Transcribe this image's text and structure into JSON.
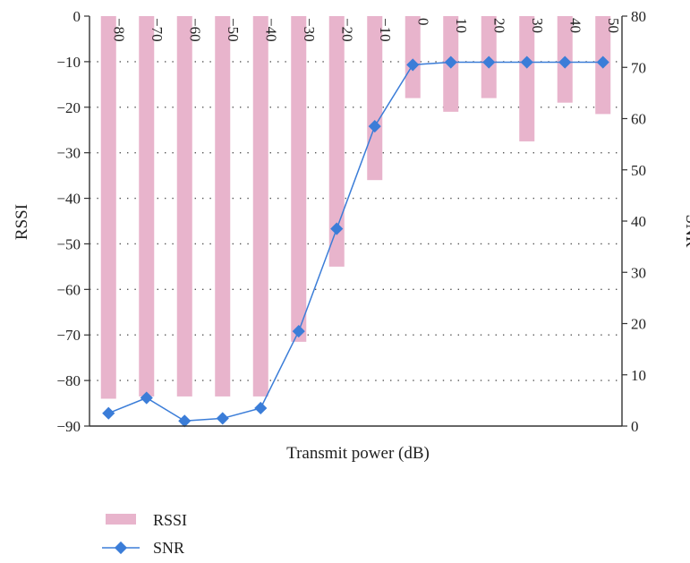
{
  "chart_data": {
    "type": "bar+line",
    "categories": [
      "−80",
      "−70",
      "−60",
      "−50",
      "−40",
      "−30",
      "−20",
      "−10",
      "0",
      "10",
      "20",
      "30",
      "40",
      "50"
    ],
    "series": [
      {
        "name": "RSSI",
        "type": "bar",
        "axis": "left",
        "color": "#e8b4cc",
        "values": [
          -84,
          -83.5,
          -83.5,
          -83.5,
          -83.5,
          -71.5,
          -55,
          -36,
          -18,
          -21,
          -18,
          -27.5,
          -19,
          -21.5
        ]
      },
      {
        "name": "SNR",
        "type": "line",
        "axis": "right",
        "color": "#3b7dd8",
        "marker": "diamond",
        "values": [
          2.5,
          5.5,
          1,
          1.5,
          3.5,
          18.5,
          38.5,
          58.5,
          70.5,
          71,
          71,
          71,
          71,
          71
        ]
      }
    ],
    "xlabel": "Transmit power (dB)",
    "ylabel_left": "RSSI",
    "ylabel_right": "SNR",
    "ylim_left": [
      -90,
      0
    ],
    "ylim_right": [
      0,
      80
    ],
    "yticks_left": [
      "0",
      "−10",
      "−20",
      "−30",
      "−40",
      "−50",
      "−60",
      "−70",
      "−80",
      "−90"
    ],
    "yticks_right": [
      "80",
      "70",
      "60",
      "50",
      "40",
      "30",
      "20",
      "10",
      "0"
    ],
    "grid": "horizontal dotted",
    "legend_placement": "bottom-left"
  }
}
